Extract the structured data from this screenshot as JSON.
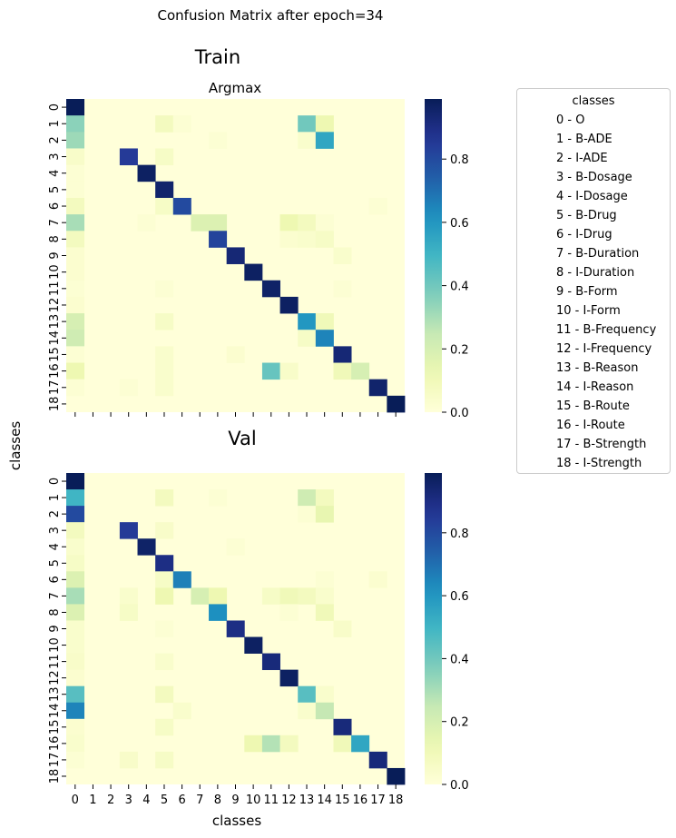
{
  "figure": {
    "suptitle": "Confusion Matrix after epoch=34",
    "ylabel": "classes",
    "xlabel": "classes"
  },
  "legend": {
    "title": "classes",
    "items": [
      "0 - O",
      "1 - B-ADE",
      "2 - I-ADE",
      "3 - B-Dosage",
      "4 - I-Dosage",
      "5 - B-Drug",
      "6 - I-Drug",
      "7 - B-Duration",
      "8 - I-Duration",
      "9 - B-Form",
      "10 - I-Form",
      "11 - B-Frequency",
      "12 - I-Frequency",
      "13 - B-Reason",
      "14 - I-Reason",
      "15 - B-Route",
      "16 - I-Route",
      "17 - B-Strength",
      "18 - I-Strength"
    ]
  },
  "colormap": {
    "name": "YlGnBu",
    "stops": [
      "#ffffd9",
      "#edf8b1",
      "#c7e9b4",
      "#7fcdbb",
      "#41b6c4",
      "#1d91c0",
      "#225ea8",
      "#253494",
      "#081d58"
    ]
  },
  "chart_data": [
    {
      "type": "heatmap",
      "title": "Train",
      "subtitle": "Argmax",
      "x_tick_labels": [],
      "y_tick_labels": [
        "0",
        "1",
        "2",
        "3",
        "4",
        "5",
        "6",
        "7",
        "8",
        "9",
        "10",
        "11",
        "12",
        "13",
        "14",
        "15",
        "16",
        "17",
        "18"
      ],
      "colorbar_ticks": [
        0.0,
        0.2,
        0.4,
        0.6,
        0.8
      ],
      "colorbar_tick_labels": [
        "0.0",
        "0.2",
        "0.4",
        "0.6",
        "0.8"
      ],
      "vmin": 0,
      "vmax": 0.99,
      "cells": [
        [
          0,
          0,
          0.99
        ],
        [
          1,
          0,
          0.35
        ],
        [
          1,
          5,
          0.08
        ],
        [
          1,
          6,
          0.02
        ],
        [
          1,
          13,
          0.4
        ],
        [
          1,
          14,
          0.12
        ],
        [
          2,
          0,
          0.32
        ],
        [
          2,
          8,
          0.02
        ],
        [
          2,
          13,
          0.04
        ],
        [
          2,
          14,
          0.55
        ],
        [
          3,
          0,
          0.05
        ],
        [
          3,
          3,
          0.85
        ],
        [
          3,
          5,
          0.06
        ],
        [
          4,
          0,
          0.02
        ],
        [
          4,
          4,
          0.97
        ],
        [
          5,
          0,
          0.02
        ],
        [
          5,
          5,
          0.95
        ],
        [
          6,
          0,
          0.08
        ],
        [
          6,
          5,
          0.06
        ],
        [
          6,
          6,
          0.8
        ],
        [
          6,
          17,
          0.02
        ],
        [
          7,
          0,
          0.3
        ],
        [
          7,
          4,
          0.02
        ],
        [
          7,
          7,
          0.18
        ],
        [
          7,
          8,
          0.18
        ],
        [
          7,
          12,
          0.12
        ],
        [
          7,
          13,
          0.08
        ],
        [
          7,
          14,
          0.02
        ],
        [
          8,
          0,
          0.08
        ],
        [
          8,
          8,
          0.82
        ],
        [
          8,
          12,
          0.03
        ],
        [
          8,
          13,
          0.04
        ],
        [
          8,
          14,
          0.06
        ],
        [
          9,
          0,
          0.03
        ],
        [
          9,
          9,
          0.93
        ],
        [
          9,
          15,
          0.04
        ],
        [
          10,
          0,
          0.03
        ],
        [
          10,
          10,
          0.97
        ],
        [
          11,
          0,
          0.02
        ],
        [
          11,
          5,
          0.02
        ],
        [
          11,
          11,
          0.96
        ],
        [
          11,
          15,
          0.02
        ],
        [
          12,
          0,
          0.03
        ],
        [
          12,
          12,
          0.97
        ],
        [
          13,
          0,
          0.2
        ],
        [
          13,
          5,
          0.06
        ],
        [
          13,
          13,
          0.6
        ],
        [
          13,
          14,
          0.1
        ],
        [
          14,
          0,
          0.22
        ],
        [
          14,
          13,
          0.06
        ],
        [
          14,
          14,
          0.65
        ],
        [
          15,
          0,
          0.02
        ],
        [
          15,
          5,
          0.04
        ],
        [
          15,
          9,
          0.03
        ],
        [
          15,
          15,
          0.93
        ],
        [
          16,
          0,
          0.12
        ],
        [
          16,
          5,
          0.04
        ],
        [
          16,
          11,
          0.42
        ],
        [
          16,
          12,
          0.05
        ],
        [
          16,
          15,
          0.1
        ],
        [
          16,
          16,
          0.2
        ],
        [
          17,
          0,
          0.02
        ],
        [
          17,
          3,
          0.02
        ],
        [
          17,
          5,
          0.04
        ],
        [
          17,
          17,
          0.95
        ],
        [
          18,
          18,
          0.99
        ]
      ]
    },
    {
      "type": "heatmap",
      "title": "Val",
      "subtitle": "",
      "x_tick_labels": [
        "0",
        "1",
        "2",
        "3",
        "4",
        "5",
        "6",
        "7",
        "8",
        "9",
        "10",
        "11",
        "12",
        "13",
        "14",
        "15",
        "16",
        "17",
        "18"
      ],
      "y_tick_labels": [
        "0",
        "1",
        "2",
        "3",
        "4",
        "5",
        "6",
        "7",
        "8",
        "9",
        "10",
        "11",
        "12",
        "13",
        "14",
        "15",
        "16",
        "17",
        "18"
      ],
      "colorbar_ticks": [
        0.0,
        0.2,
        0.4,
        0.6,
        0.8
      ],
      "colorbar_tick_labels": [
        "0.0",
        "0.2",
        "0.4",
        "0.6",
        "0.8"
      ],
      "vmin": 0,
      "vmax": 0.99,
      "cells": [
        [
          0,
          0,
          0.99
        ],
        [
          1,
          0,
          0.5
        ],
        [
          1,
          5,
          0.08
        ],
        [
          1,
          8,
          0.02
        ],
        [
          1,
          13,
          0.22
        ],
        [
          1,
          14,
          0.08
        ],
        [
          2,
          0,
          0.8
        ],
        [
          2,
          13,
          0.02
        ],
        [
          2,
          14,
          0.14
        ],
        [
          3,
          0,
          0.08
        ],
        [
          3,
          3,
          0.85
        ],
        [
          3,
          5,
          0.05
        ],
        [
          4,
          0,
          0.04
        ],
        [
          4,
          4,
          0.96
        ],
        [
          4,
          9,
          0.02
        ],
        [
          5,
          0,
          0.06
        ],
        [
          5,
          5,
          0.9
        ],
        [
          6,
          0,
          0.18
        ],
        [
          6,
          5,
          0.06
        ],
        [
          6,
          6,
          0.66
        ],
        [
          6,
          14,
          0.02
        ],
        [
          6,
          17,
          0.03
        ],
        [
          7,
          0,
          0.3
        ],
        [
          7,
          3,
          0.04
        ],
        [
          7,
          5,
          0.12
        ],
        [
          7,
          7,
          0.2
        ],
        [
          7,
          8,
          0.12
        ],
        [
          7,
          11,
          0.06
        ],
        [
          7,
          12,
          0.1
        ],
        [
          7,
          13,
          0.08
        ],
        [
          7,
          14,
          0.04
        ],
        [
          8,
          0,
          0.18
        ],
        [
          8,
          3,
          0.06
        ],
        [
          8,
          8,
          0.62
        ],
        [
          8,
          12,
          0.02
        ],
        [
          8,
          14,
          0.1
        ],
        [
          9,
          0,
          0.04
        ],
        [
          9,
          5,
          0.02
        ],
        [
          9,
          9,
          0.9
        ],
        [
          9,
          15,
          0.05
        ],
        [
          10,
          0,
          0.04
        ],
        [
          10,
          10,
          0.97
        ],
        [
          11,
          0,
          0.05
        ],
        [
          11,
          5,
          0.04
        ],
        [
          11,
          11,
          0.92
        ],
        [
          12,
          0,
          0.03
        ],
        [
          12,
          12,
          0.97
        ],
        [
          13,
          0,
          0.45
        ],
        [
          13,
          5,
          0.08
        ],
        [
          13,
          13,
          0.45
        ],
        [
          13,
          14,
          0.04
        ],
        [
          14,
          0,
          0.65
        ],
        [
          14,
          6,
          0.04
        ],
        [
          14,
          13,
          0.04
        ],
        [
          14,
          14,
          0.25
        ],
        [
          15,
          0,
          0.03
        ],
        [
          15,
          5,
          0.06
        ],
        [
          15,
          15,
          0.92
        ],
        [
          16,
          0,
          0.04
        ],
        [
          16,
          10,
          0.12
        ],
        [
          16,
          11,
          0.28
        ],
        [
          16,
          12,
          0.08
        ],
        [
          16,
          15,
          0.1
        ],
        [
          16,
          16,
          0.55
        ],
        [
          17,
          0,
          0.02
        ],
        [
          17,
          3,
          0.05
        ],
        [
          17,
          5,
          0.06
        ],
        [
          17,
          17,
          0.92
        ],
        [
          18,
          18,
          0.99
        ]
      ]
    }
  ]
}
